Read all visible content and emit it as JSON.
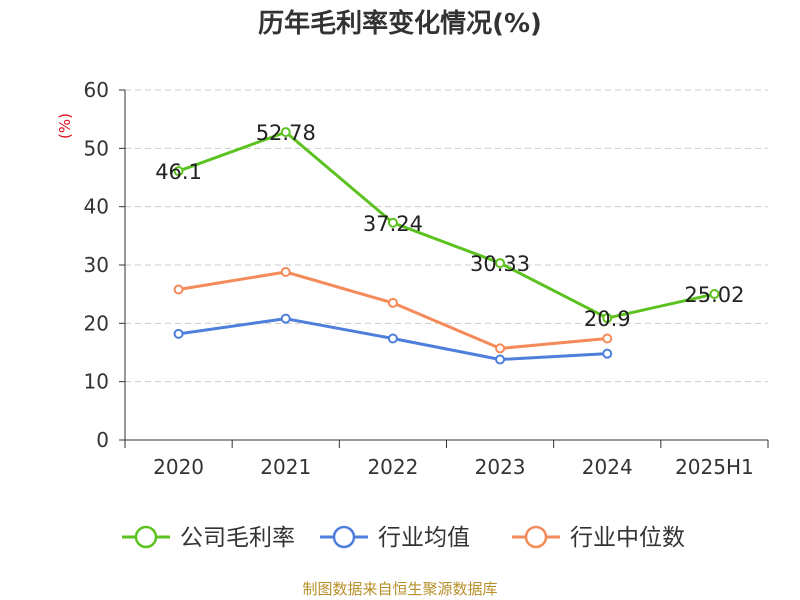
{
  "chart_data": {
    "type": "line",
    "title": "历年毛利率变化情况(%)",
    "ylabel": "(%)",
    "xlabel": "",
    "categories": [
      "2020",
      "2021",
      "2022",
      "2023",
      "2024",
      "2025H1"
    ],
    "ylim": [
      0,
      60
    ],
    "yticks": [
      0,
      10,
      20,
      30,
      40,
      50,
      60
    ],
    "grid": true,
    "legend_position": "bottom",
    "series": [
      {
        "name": "公司毛利率",
        "color": "#5cc220",
        "values": [
          46.1,
          52.78,
          37.24,
          30.33,
          20.9,
          25.02
        ],
        "labels": [
          "46.1",
          "52.78",
          "37.24",
          "30.33",
          "20.9",
          "25.02"
        ]
      },
      {
        "name": "行业均值",
        "color": "#4f7fdd",
        "values": [
          18.2,
          20.8,
          17.4,
          13.8,
          14.8,
          null
        ]
      },
      {
        "name": "行业中位数",
        "color": "#f58b5a",
        "values": [
          25.8,
          28.8,
          23.5,
          15.7,
          17.4,
          null
        ]
      }
    ],
    "source": "制图数据来自恒生聚源数据库"
  }
}
